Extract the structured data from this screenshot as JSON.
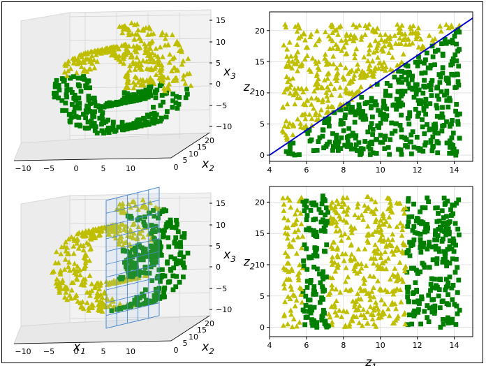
{
  "colors": {
    "class_a": "#007f00",
    "class_b": "#bfbf00",
    "boundary": "#0000cc",
    "plane": "#4d88cc",
    "pane": "#f2f2f2",
    "grid": "#dcdcdc"
  },
  "chart_data": [
    {
      "id": "swiss-roll-3d-top",
      "type": "scatter3d",
      "series": [
        {
          "marker": "square",
          "color": "#007f00"
        },
        {
          "marker": "triangle",
          "color": "#bfbf00"
        }
      ],
      "axes": {
        "x": {
          "label": "",
          "ticks": [
            "−10",
            "−5",
            "0",
            "5",
            "10"
          ]
        },
        "y": {
          "label": "x",
          "sub": "2",
          "ticks": [
            "0",
            "5",
            "10",
            "15",
            "20"
          ]
        },
        "z": {
          "label": "x",
          "sub": "3",
          "ticks": [
            "15",
            "10",
            "5",
            "0",
            "−5",
            "−10"
          ]
        }
      }
    },
    {
      "id": "unrolled-top",
      "type": "scatter",
      "series": [
        {
          "marker": "square",
          "color": "#007f00",
          "rule": "z2 < 2*(z1 - 4)"
        },
        {
          "marker": "triangle",
          "color": "#bfbf00",
          "rule": "z2 > 2*(z1 - 4)"
        }
      ],
      "decision_line": {
        "x": [
          4,
          15
        ],
        "y": [
          0,
          22
        ]
      },
      "xlim": [
        4,
        15
      ],
      "ylim": [
        -1,
        23
      ],
      "xticks": [
        4,
        6,
        8,
        10,
        12,
        14
      ],
      "yticks": [
        0,
        5,
        10,
        15,
        20
      ],
      "xlabel": "",
      "ylabel": "z",
      "ylabel_sub": "2",
      "grid": true
    },
    {
      "id": "swiss-roll-3d-bottom",
      "type": "scatter3d",
      "plane": "x1 = 5",
      "series": [
        {
          "marker": "square",
          "color": "#007f00"
        },
        {
          "marker": "triangle",
          "color": "#bfbf00"
        }
      ],
      "axes": {
        "x": {
          "label": "x",
          "sub": "1",
          "ticks": [
            "−10",
            "−5",
            "0",
            "5",
            "10"
          ]
        },
        "y": {
          "label": "x",
          "sub": "2",
          "ticks": [
            "0",
            "5",
            "10",
            "15",
            "20"
          ]
        },
        "z": {
          "label": "x",
          "sub": "3",
          "ticks": [
            "15",
            "10",
            "5",
            "0",
            "−5",
            "−10"
          ]
        }
      }
    },
    {
      "id": "unrolled-bottom",
      "type": "scatter",
      "series": [
        {
          "marker": "square",
          "color": "#007f00",
          "rule": "5.8 < z1 < 7.2 or z1 > 11.4"
        },
        {
          "marker": "triangle",
          "color": "#bfbf00",
          "rule": "otherwise"
        }
      ],
      "xlim": [
        4,
        15
      ],
      "ylim": [
        -1.5,
        22.5
      ],
      "xticks": [
        4,
        6,
        8,
        10,
        12,
        14
      ],
      "yticks": [
        0,
        5,
        10,
        15,
        20
      ],
      "xlabel": "z",
      "xlabel_sub": "1",
      "ylabel": "z",
      "ylabel_sub": "2",
      "grid": true
    }
  ]
}
